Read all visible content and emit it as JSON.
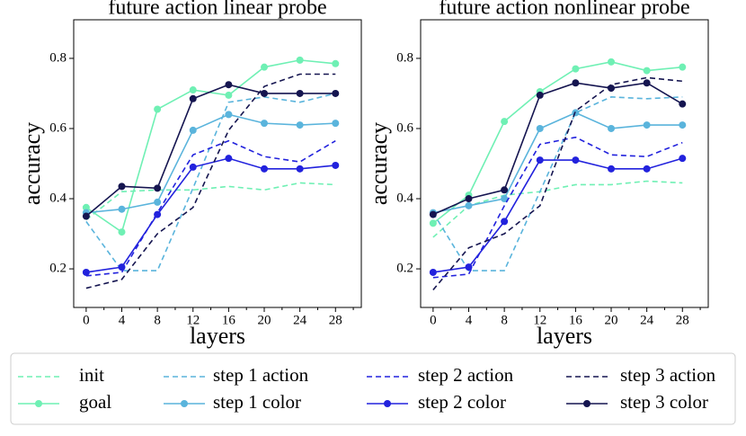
{
  "chart_data": [
    {
      "type": "line",
      "title": "future action linear probe",
      "xlabel": "layers",
      "ylabel": "accuracy",
      "x": [
        0,
        4,
        8,
        12,
        16,
        20,
        24,
        28
      ],
      "xlim": [
        -1.4,
        30.9
      ],
      "ylim": [
        0.09,
        0.91
      ],
      "xticks": [
        0,
        4,
        8,
        12,
        16,
        20,
        24,
        28
      ],
      "xminorticks": [
        2,
        6,
        10,
        14,
        18,
        22,
        26,
        30
      ],
      "yticks": [
        0.2,
        0.4,
        0.6,
        0.8
      ],
      "series": [
        {
          "name": "init",
          "color": "#6ff0b4",
          "linestyle": "dashed",
          "marker": false,
          "values": [
            0.34,
            0.42,
            0.425,
            0.425,
            0.435,
            0.425,
            0.445,
            0.44
          ]
        },
        {
          "name": "goal",
          "color": "#6ff0b4",
          "linestyle": "solid",
          "marker": true,
          "values": [
            0.375,
            0.305,
            0.655,
            0.71,
            0.695,
            0.775,
            0.795,
            0.785
          ]
        },
        {
          "name": "step 1 action",
          "color": "#5ab4dc",
          "linestyle": "dashed",
          "marker": false,
          "values": [
            0.335,
            0.195,
            0.195,
            0.43,
            0.675,
            0.69,
            0.675,
            0.7
          ]
        },
        {
          "name": "step 1 color",
          "color": "#5ab4dc",
          "linestyle": "solid",
          "marker": true,
          "values": [
            0.36,
            0.37,
            0.39,
            0.595,
            0.64,
            0.615,
            0.61,
            0.615
          ]
        },
        {
          "name": "step 2 action",
          "color": "#2222dd",
          "linestyle": "dashed",
          "marker": false,
          "values": [
            0.18,
            0.19,
            0.36,
            0.525,
            0.565,
            0.52,
            0.505,
            0.565
          ]
        },
        {
          "name": "step 2 color",
          "color": "#2222dd",
          "linestyle": "solid",
          "marker": true,
          "values": [
            0.19,
            0.205,
            0.355,
            0.49,
            0.515,
            0.485,
            0.485,
            0.495
          ]
        },
        {
          "name": "step 3 action",
          "color": "#151550",
          "linestyle": "dashed",
          "marker": false,
          "values": [
            0.145,
            0.17,
            0.3,
            0.375,
            0.595,
            0.72,
            0.755,
            0.755
          ]
        },
        {
          "name": "step 3 color",
          "color": "#151550",
          "linestyle": "solid",
          "marker": true,
          "values": [
            0.35,
            0.435,
            0.43,
            0.685,
            0.725,
            0.7,
            0.7,
            0.7
          ]
        }
      ]
    },
    {
      "type": "line",
      "title": "future action nonlinear probe",
      "xlabel": "layers",
      "ylabel": "accuracy",
      "x": [
        0,
        4,
        8,
        12,
        16,
        20,
        24,
        28
      ],
      "xlim": [
        -1.4,
        30.9
      ],
      "ylim": [
        0.09,
        0.91
      ],
      "xticks": [
        0,
        4,
        8,
        12,
        16,
        20,
        24,
        28
      ],
      "xminorticks": [
        2,
        6,
        10,
        14,
        18,
        22,
        26,
        30
      ],
      "yticks": [
        0.2,
        0.4,
        0.6,
        0.8
      ],
      "series": [
        {
          "name": "init",
          "color": "#6ff0b4",
          "linestyle": "dashed",
          "marker": false,
          "values": [
            0.29,
            0.38,
            0.41,
            0.42,
            0.44,
            0.44,
            0.45,
            0.445
          ]
        },
        {
          "name": "goal",
          "color": "#6ff0b4",
          "linestyle": "solid",
          "marker": true,
          "values": [
            0.33,
            0.41,
            0.62,
            0.705,
            0.77,
            0.79,
            0.765,
            0.775
          ]
        },
        {
          "name": "step 1 action",
          "color": "#5ab4dc",
          "linestyle": "dashed",
          "marker": false,
          "values": [
            0.36,
            0.195,
            0.195,
            0.42,
            0.645,
            0.69,
            0.685,
            0.69
          ]
        },
        {
          "name": "step 1 color",
          "color": "#5ab4dc",
          "linestyle": "solid",
          "marker": true,
          "values": [
            0.36,
            0.38,
            0.4,
            0.6,
            0.645,
            0.6,
            0.61,
            0.61
          ]
        },
        {
          "name": "step 2 action",
          "color": "#2222dd",
          "linestyle": "dashed",
          "marker": false,
          "values": [
            0.175,
            0.185,
            0.38,
            0.555,
            0.575,
            0.525,
            0.52,
            0.56
          ]
        },
        {
          "name": "step 2 color",
          "color": "#2222dd",
          "linestyle": "solid",
          "marker": true,
          "values": [
            0.19,
            0.205,
            0.335,
            0.51,
            0.51,
            0.485,
            0.485,
            0.515
          ]
        },
        {
          "name": "step 3 action",
          "color": "#151550",
          "linestyle": "dashed",
          "marker": false,
          "values": [
            0.14,
            0.26,
            0.3,
            0.38,
            0.65,
            0.725,
            0.745,
            0.735
          ]
        },
        {
          "name": "step 3 color",
          "color": "#151550",
          "linestyle": "solid",
          "marker": true,
          "values": [
            0.355,
            0.4,
            0.425,
            0.695,
            0.73,
            0.715,
            0.73,
            0.67
          ]
        }
      ]
    }
  ]
}
